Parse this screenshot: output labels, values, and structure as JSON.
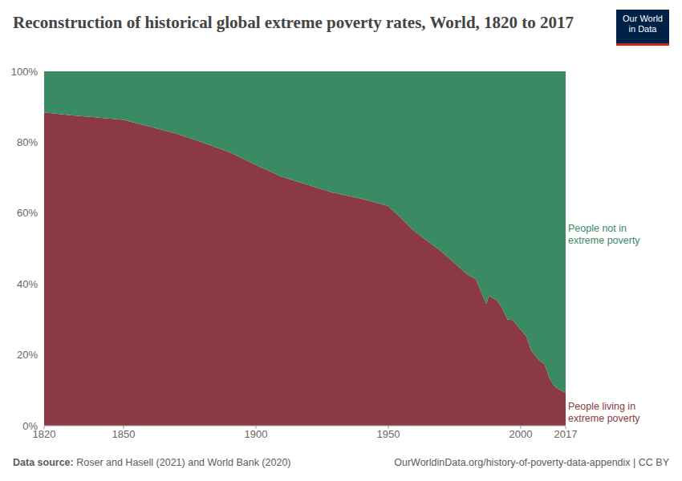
{
  "chart_data": {
    "type": "area",
    "title": "Reconstruction of historical global extreme poverty rates, World, 1820 to 2017",
    "stacked": true,
    "grid": false,
    "x": [
      1820,
      1830,
      1840,
      1850,
      1860,
      1870,
      1880,
      1890,
      1900,
      1910,
      1920,
      1929,
      1940,
      1950,
      1960,
      1970,
      1980,
      1983,
      1987,
      1988,
      1991,
      1993,
      1995,
      1997,
      1999,
      2002,
      2004,
      2007,
      2009,
      2011,
      2013,
      2015,
      2017
    ],
    "series": [
      {
        "name": "People living in extreme poverty",
        "color": "#8b3a44",
        "values": [
          88.4,
          87.6,
          87.0,
          86.3,
          84.4,
          82.4,
          79.9,
          77.2,
          73.6,
          70.2,
          67.9,
          65.8,
          64.0,
          62.0,
          54.8,
          49.2,
          42.6,
          41.4,
          34.4,
          36.6,
          35.4,
          33.2,
          30.0,
          29.8,
          28.0,
          25.4,
          21.2,
          18.4,
          17.4,
          13.2,
          11.0,
          10.0,
          9.2
        ]
      },
      {
        "name": "People not in extreme poverty",
        "color": "#3a8a64",
        "values": [
          11.6,
          12.4,
          13.0,
          13.7,
          15.6,
          17.6,
          20.1,
          22.8,
          26.4,
          29.8,
          32.1,
          34.2,
          36.0,
          38.0,
          45.2,
          50.8,
          57.4,
          58.6,
          65.6,
          63.4,
          64.6,
          66.8,
          70.0,
          70.2,
          72.0,
          74.6,
          78.8,
          81.6,
          82.6,
          86.8,
          89.0,
          90.0,
          90.8
        ]
      }
    ],
    "xlim": [
      1820,
      2017
    ],
    "xticks": [
      1820,
      1850,
      1900,
      1950,
      2000,
      2017
    ],
    "ylim": [
      0,
      100
    ],
    "yticks": [
      {
        "value": 0,
        "label": "0%"
      },
      {
        "value": 20,
        "label": "20%"
      },
      {
        "value": 40,
        "label": "40%"
      },
      {
        "value": 60,
        "label": "60%"
      },
      {
        "value": 80,
        "label": "80%"
      },
      {
        "value": 100,
        "label": "100%"
      }
    ],
    "source_label": "Data source:",
    "source": "Roser and Hasell (2021) and World Bank (2020)",
    "url": "OurWorldinData.org/history-of-poverty-data-appendix | CC BY",
    "logo": [
      "Our World",
      "in Data"
    ]
  }
}
